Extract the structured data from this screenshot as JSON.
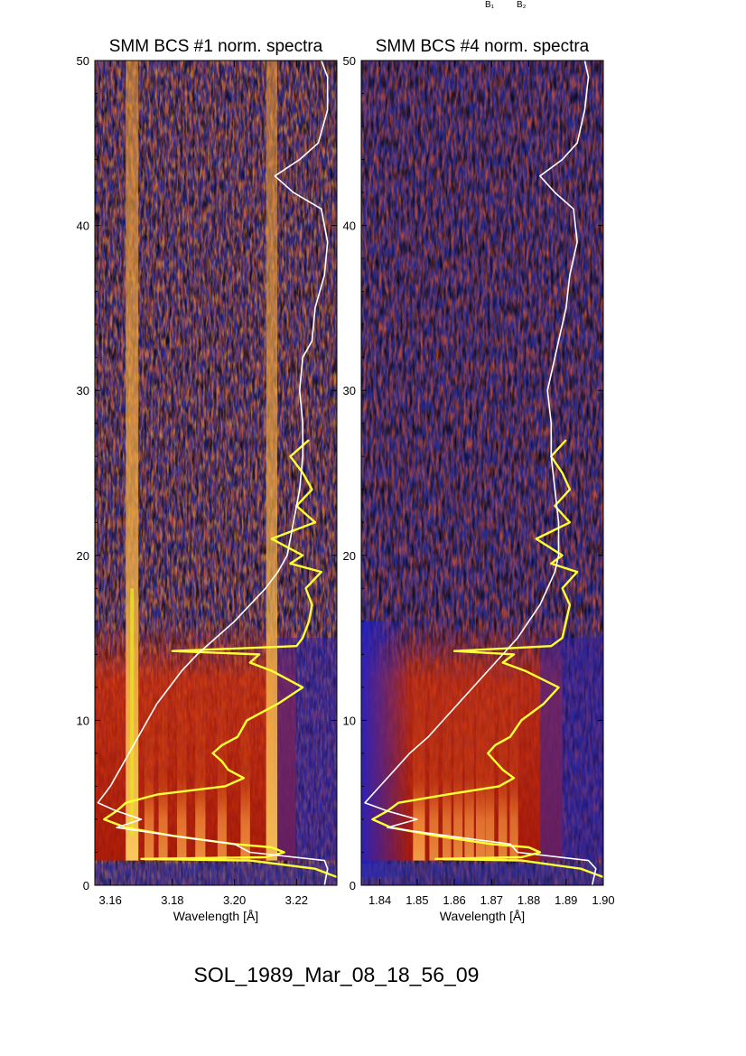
{
  "header_marks": [
    "B₁",
    "B₂"
  ],
  "footer": {
    "label": "SOL_1989_Mar_08_18_56_09"
  },
  "colors": {
    "white_curve": "#ffffff",
    "yellow_curve": "#ffff33",
    "background_dark": "#2a2a8c",
    "emission_red": "#d42a00"
  },
  "chart_data": [
    {
      "type": "heatmap",
      "title": "SMM BCS #1 norm. spectra",
      "xlabel": "Wavelength [Å]",
      "ylabel": "",
      "xlim": [
        3.155,
        3.233
      ],
      "ylim": [
        0,
        50
      ],
      "xticks": [
        "3.16",
        "3.18",
        "3.20",
        "3.22"
      ],
      "xtick_values": [
        3.16,
        3.18,
        3.2,
        3.22
      ],
      "yticks": [
        "0",
        "10",
        "20",
        "30",
        "40",
        "50"
      ],
      "ytick_values": [
        0,
        10,
        20,
        30,
        40,
        50
      ],
      "emission_lines": [
        {
          "wavelength": 3.167,
          "strength": 1.0
        },
        {
          "wavelength": 3.1725,
          "strength": 0.55
        },
        {
          "wavelength": 3.177,
          "strength": 0.5
        },
        {
          "wavelength": 3.183,
          "strength": 0.55
        },
        {
          "wavelength": 3.189,
          "strength": 0.65
        },
        {
          "wavelength": 3.196,
          "strength": 0.5
        },
        {
          "wavelength": 3.2035,
          "strength": 0.55
        },
        {
          "wavelength": 3.212,
          "strength": 0.8
        }
      ],
      "white_curve": [
        [
          0.0,
          3.229
        ],
        [
          1.0,
          3.23
        ],
        [
          1.5,
          3.229
        ],
        [
          2.0,
          3.205
        ],
        [
          2.5,
          3.2
        ],
        [
          3.0,
          3.18
        ],
        [
          3.5,
          3.162
        ],
        [
          4.0,
          3.17
        ],
        [
          4.5,
          3.162
        ],
        [
          5.0,
          3.156
        ],
        [
          6.0,
          3.16
        ],
        [
          7.0,
          3.163
        ],
        [
          8.0,
          3.166
        ],
        [
          9.0,
          3.169
        ],
        [
          10.0,
          3.172
        ],
        [
          11.0,
          3.175
        ],
        [
          12.0,
          3.179
        ],
        [
          13.0,
          3.183
        ],
        [
          14.0,
          3.188
        ],
        [
          15.0,
          3.194
        ],
        [
          16.0,
          3.2
        ],
        [
          17.0,
          3.205
        ],
        [
          18.0,
          3.21
        ],
        [
          19.0,
          3.214
        ],
        [
          20.0,
          3.217
        ],
        [
          22.0,
          3.219
        ],
        [
          24.0,
          3.221
        ],
        [
          26.0,
          3.222
        ],
        [
          28.0,
          3.222
        ],
        [
          30.0,
          3.221
        ],
        [
          32.0,
          3.222
        ],
        [
          33.0,
          3.225
        ],
        [
          35.0,
          3.226
        ],
        [
          37.0,
          3.229
        ],
        [
          39.0,
          3.23
        ],
        [
          41.0,
          3.228
        ],
        [
          42.0,
          3.219
        ],
        [
          43.0,
          3.213
        ],
        [
          44.0,
          3.221
        ],
        [
          45.0,
          3.227
        ],
        [
          47.0,
          3.23
        ],
        [
          49.0,
          3.23
        ],
        [
          50.0,
          3.228
        ]
      ],
      "yellow_curve": [
        [
          0.5,
          3.233
        ],
        [
          1.0,
          3.226
        ],
        [
          1.5,
          3.205
        ],
        [
          1.6,
          3.17
        ],
        [
          1.7,
          3.21
        ],
        [
          2.0,
          3.216
        ],
        [
          2.3,
          3.212
        ],
        [
          2.5,
          3.2
        ],
        [
          3.0,
          3.18
        ],
        [
          3.5,
          3.165
        ],
        [
          4.0,
          3.158
        ],
        [
          4.5,
          3.162
        ],
        [
          5.0,
          3.165
        ],
        [
          5.5,
          3.175
        ],
        [
          6.0,
          3.197
        ],
        [
          6.5,
          3.203
        ],
        [
          7.0,
          3.198
        ],
        [
          7.5,
          3.196
        ],
        [
          8.0,
          3.193
        ],
        [
          8.5,
          3.196
        ],
        [
          9.0,
          3.201
        ],
        [
          10.0,
          3.204
        ],
        [
          11.0,
          3.214
        ],
        [
          12.0,
          3.222
        ],
        [
          13.0,
          3.212
        ],
        [
          13.5,
          3.205
        ],
        [
          14.0,
          3.208
        ],
        [
          14.2,
          3.18
        ],
        [
          14.5,
          3.22
        ],
        [
          15.0,
          3.222
        ],
        [
          16.0,
          3.224
        ],
        [
          17.0,
          3.225
        ],
        [
          18.0,
          3.223
        ],
        [
          19.0,
          3.228
        ],
        [
          19.5,
          3.218
        ],
        [
          20.0,
          3.222
        ],
        [
          21.0,
          3.212
        ],
        [
          22.0,
          3.226
        ],
        [
          23.0,
          3.22
        ],
        [
          24.0,
          3.225
        ],
        [
          25.0,
          3.222
        ],
        [
          26.0,
          3.218
        ],
        [
          27.0,
          3.224
        ]
      ]
    },
    {
      "type": "heatmap",
      "title": "SMM BCS #4 norm. spectra",
      "xlabel": "Wavelength [Å]",
      "ylabel": "",
      "xlim": [
        1.835,
        1.9
      ],
      "ylim": [
        0,
        50
      ],
      "xticks": [
        "1.84",
        "1.85",
        "1.86",
        "1.87",
        "1.88",
        "1.89",
        "1.90"
      ],
      "xtick_values": [
        1.84,
        1.85,
        1.86,
        1.87,
        1.88,
        1.89,
        1.9
      ],
      "yticks": [
        "0",
        "10",
        "20",
        "30",
        "40",
        "50"
      ],
      "ytick_values": [
        0,
        10,
        20,
        30,
        40,
        50
      ],
      "emission_lines": [
        {
          "wavelength": 1.8505,
          "strength": 0.9
        },
        {
          "wavelength": 1.8545,
          "strength": 0.5
        },
        {
          "wavelength": 1.858,
          "strength": 0.45
        },
        {
          "wavelength": 1.861,
          "strength": 0.5
        },
        {
          "wavelength": 1.864,
          "strength": 0.55
        },
        {
          "wavelength": 1.867,
          "strength": 0.5
        },
        {
          "wavelength": 1.8695,
          "strength": 0.5
        },
        {
          "wavelength": 1.873,
          "strength": 0.45
        },
        {
          "wavelength": 1.876,
          "strength": 0.4
        }
      ],
      "white_curve": [
        [
          0.0,
          1.897
        ],
        [
          1.0,
          1.898
        ],
        [
          1.5,
          1.896
        ],
        [
          2.0,
          1.877
        ],
        [
          2.5,
          1.875
        ],
        [
          3.0,
          1.858
        ],
        [
          3.5,
          1.842
        ],
        [
          4.0,
          1.85
        ],
        [
          4.5,
          1.842
        ],
        [
          5.0,
          1.836
        ],
        [
          6.0,
          1.84
        ],
        [
          7.0,
          1.844
        ],
        [
          8.0,
          1.848
        ],
        [
          9.0,
          1.853
        ],
        [
          10.0,
          1.857
        ],
        [
          11.0,
          1.861
        ],
        [
          12.0,
          1.865
        ],
        [
          13.0,
          1.869
        ],
        [
          14.0,
          1.873
        ],
        [
          15.0,
          1.877
        ],
        [
          16.0,
          1.88
        ],
        [
          17.0,
          1.883
        ],
        [
          18.0,
          1.885
        ],
        [
          19.0,
          1.887
        ],
        [
          20.0,
          1.888
        ],
        [
          22.0,
          1.888
        ],
        [
          24.0,
          1.887
        ],
        [
          26.0,
          1.886
        ],
        [
          28.0,
          1.886
        ],
        [
          30.0,
          1.885
        ],
        [
          32.0,
          1.887
        ],
        [
          33.0,
          1.888
        ],
        [
          35.0,
          1.89
        ],
        [
          37.0,
          1.891
        ],
        [
          39.0,
          1.893
        ],
        [
          41.0,
          1.892
        ],
        [
          42.0,
          1.887
        ],
        [
          43.0,
          1.883
        ],
        [
          44.0,
          1.889
        ],
        [
          45.0,
          1.893
        ],
        [
          47.0,
          1.895
        ],
        [
          49.0,
          1.896
        ],
        [
          50.0,
          1.895
        ]
      ],
      "yellow_curve": [
        [
          0.5,
          1.9
        ],
        [
          1.0,
          1.894
        ],
        [
          1.5,
          1.878
        ],
        [
          1.6,
          1.855
        ],
        [
          1.7,
          1.878
        ],
        [
          2.0,
          1.883
        ],
        [
          2.3,
          1.88
        ],
        [
          2.5,
          1.87
        ],
        [
          3.0,
          1.855
        ],
        [
          3.5,
          1.843
        ],
        [
          4.0,
          1.838
        ],
        [
          4.5,
          1.842
        ],
        [
          5.0,
          1.845
        ],
        [
          5.5,
          1.858
        ],
        [
          6.0,
          1.872
        ],
        [
          6.5,
          1.876
        ],
        [
          7.0,
          1.873
        ],
        [
          7.5,
          1.871
        ],
        [
          8.0,
          1.869
        ],
        [
          8.5,
          1.871
        ],
        [
          9.0,
          1.875
        ],
        [
          10.0,
          1.878
        ],
        [
          11.0,
          1.884
        ],
        [
          12.0,
          1.888
        ],
        [
          13.0,
          1.879
        ],
        [
          13.5,
          1.873
        ],
        [
          14.0,
          1.876
        ],
        [
          14.2,
          1.86
        ],
        [
          14.5,
          1.886
        ],
        [
          15.0,
          1.889
        ],
        [
          16.0,
          1.89
        ],
        [
          17.0,
          1.891
        ],
        [
          18.0,
          1.889
        ],
        [
          19.0,
          1.893
        ],
        [
          19.5,
          1.886
        ],
        [
          20.0,
          1.889
        ],
        [
          21.0,
          1.882
        ],
        [
          22.0,
          1.891
        ],
        [
          23.0,
          1.887
        ],
        [
          24.0,
          1.891
        ],
        [
          25.0,
          1.889
        ],
        [
          26.0,
          1.886
        ],
        [
          27.0,
          1.89
        ]
      ]
    }
  ]
}
